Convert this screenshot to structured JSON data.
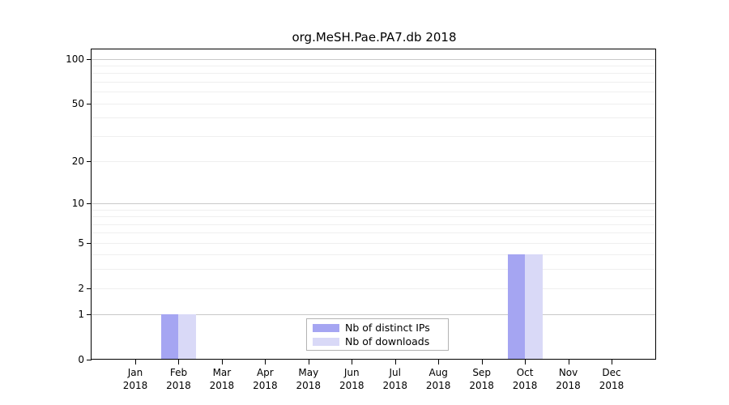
{
  "chart_data": {
    "type": "bar",
    "title": "org.MeSH.Pae.PA7.db 2018",
    "categories": [
      "Jan",
      "Feb",
      "Mar",
      "Apr",
      "May",
      "Jun",
      "Jul",
      "Aug",
      "Sep",
      "Oct",
      "Nov",
      "Dec"
    ],
    "x_year_label": "2018",
    "series": [
      {
        "name": "Nb of distinct IPs",
        "color": "#a5a5f2",
        "values": [
          0,
          1,
          0,
          0,
          0,
          0,
          0,
          0,
          0,
          4,
          0,
          0
        ]
      },
      {
        "name": "Nb of downloads",
        "color": "#d9d9f7",
        "values": [
          0,
          1,
          0,
          0,
          0,
          0,
          0,
          0,
          0,
          4,
          0,
          0
        ]
      }
    ],
    "yscale": "log1p",
    "ylim": [
      0,
      117
    ],
    "ytick_values": [
      0,
      1,
      2,
      5,
      10,
      20,
      50,
      100
    ],
    "ytick_labels": [
      "0",
      "1",
      "2",
      "5",
      "10",
      "20",
      "50",
      "100"
    ],
    "major_gridline_values": [
      1,
      10,
      100
    ],
    "minor_gridline_values": [
      2,
      3,
      4,
      5,
      6,
      7,
      8,
      9,
      20,
      30,
      40,
      50,
      60,
      70,
      80,
      90
    ],
    "grid": true,
    "legend_position": "inside-bottom-center",
    "xlabel": "",
    "ylabel": ""
  },
  "legend": {
    "items": [
      {
        "label": "Nb of distinct IPs",
        "color": "#a5a5f2"
      },
      {
        "label": "Nb of downloads",
        "color": "#d9d9f7"
      }
    ]
  },
  "colors": {
    "background": "#ffffff",
    "axis": "#000000",
    "major_grid": "#c9c9c9",
    "minor_grid": "#efefef",
    "legend_border": "#b3b3b3",
    "text": "#000000"
  }
}
